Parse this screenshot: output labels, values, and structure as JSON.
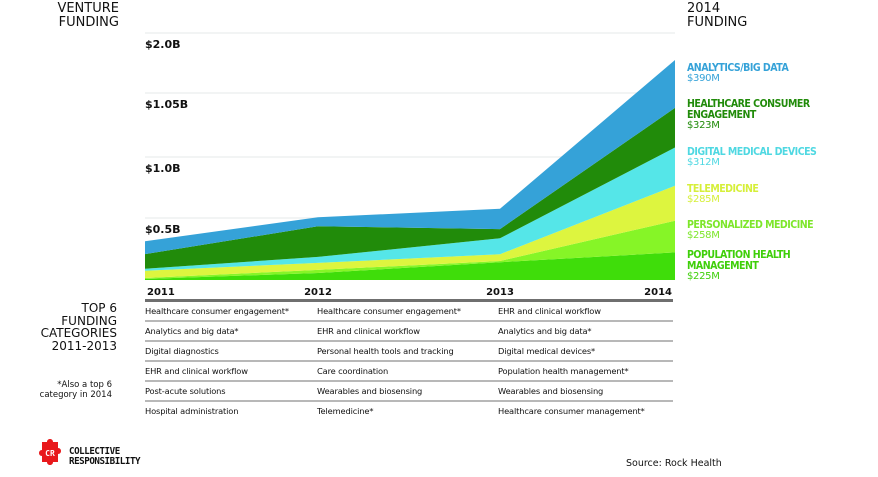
{
  "headers": {
    "left_title": [
      "VENTURE",
      "FUNDING"
    ],
    "right_title": [
      "2014",
      "FUNDING"
    ]
  },
  "chart_data": {
    "type": "area",
    "stacked": true,
    "title": "Venture Funding",
    "xlabel": "",
    "ylabel": "Venture Funding",
    "x": [
      "2011",
      "2012",
      "2013",
      "2014"
    ],
    "y_tick_labels": [
      "$0.5B",
      "$1.0B",
      "$1.05B",
      "$2.0B"
    ],
    "y_tick_values": [
      500,
      1000,
      1050,
      2000
    ],
    "units": "$M",
    "grid": true,
    "legend_position": "right",
    "series": [
      {
        "name": "Population Health Management",
        "color": "#3fdd0a",
        "values": [
          8,
          57,
          145,
          225
        ]
      },
      {
        "name": "Personalized Medicine",
        "color": "#86f527",
        "values": [
          8,
          25,
          10,
          258
        ]
      },
      {
        "name": "Telemedicine",
        "color": "#ddf53f",
        "values": [
          60,
          57,
          55,
          285
        ]
      },
      {
        "name": "Digital Medical Devices",
        "color": "#55e6e8",
        "values": [
          15,
          49,
          130,
          312
        ]
      },
      {
        "name": "Healthcare Consumer Engagement",
        "color": "#218b0a",
        "values": [
          120,
          250,
          75,
          323
        ]
      },
      {
        "name": "Analytics/Big Data",
        "color": "#35a2d8",
        "values": [
          105,
          73,
          165,
          390
        ]
      }
    ]
  },
  "legend": [
    {
      "name": "ANALYTICS/BIG DATA",
      "name_lines": [
        "ANALYTICS/BIG DATA"
      ],
      "value": "$390M",
      "color": "#35a2d8"
    },
    {
      "name": "HEALTHCARE CONSUMER ENGAGEMENT",
      "name_lines": [
        "HEALTHCARE CONSUMER",
        "ENGAGEMENT"
      ],
      "value": "$323M",
      "color": "#218b0a"
    },
    {
      "name": "DIGITAL MEDICAL DEVICES",
      "name_lines": [
        "DIGITAL MEDICAL DEVICES"
      ],
      "value": "$312M",
      "color": "#4fd8e2"
    },
    {
      "name": "TELEMEDICINE",
      "name_lines": [
        "TELEMEDICINE"
      ],
      "value": "$285M",
      "color": "#d6ef3a"
    },
    {
      "name": "PERSONALIZED MEDICINE",
      "name_lines": [
        "PERSONALIZED MEDICINE"
      ],
      "value": "$258M",
      "color": "#7de62a"
    },
    {
      "name": "POPULATION HEALTH MANAGEMENT",
      "name_lines": [
        "POPULATION HEALTH",
        "MANAGEMENT"
      ],
      "value": "$225M",
      "color": "#3fcf0a"
    }
  ],
  "top6": {
    "title": [
      "TOP 6",
      "FUNDING",
      "CATEGORIES",
      "2011-2013"
    ],
    "note": [
      "*Also a top 6",
      "category in 2014"
    ],
    "columns": [
      "2011",
      "2012",
      "2013"
    ],
    "rows": [
      [
        "Healthcare consumer engagement*",
        "Healthcare consumer engagement*",
        "EHR and clinical workflow"
      ],
      [
        "Analytics and big data*",
        "EHR and clinical workflow",
        "Analytics and big data*"
      ],
      [
        "Digital diagnostics",
        "Personal health tools and tracking",
        "Digital medical devices*"
      ],
      [
        "EHR and clinical workflow",
        "Care coordination",
        "Population health management*"
      ],
      [
        "Post-acute solutions",
        "Wearables and biosensing",
        "Wearables and biosensing"
      ],
      [
        "Hospital administration",
        "Telemedicine*",
        "Healthcare consumer management*"
      ]
    ]
  },
  "logo": {
    "initials": "CR",
    "lines": [
      "COLLECTIVE",
      "RESPONSIBILITY"
    ],
    "color": "#e8191c",
    "icon": "puzzle-piece-icon"
  },
  "source": "Source: Rock Health"
}
